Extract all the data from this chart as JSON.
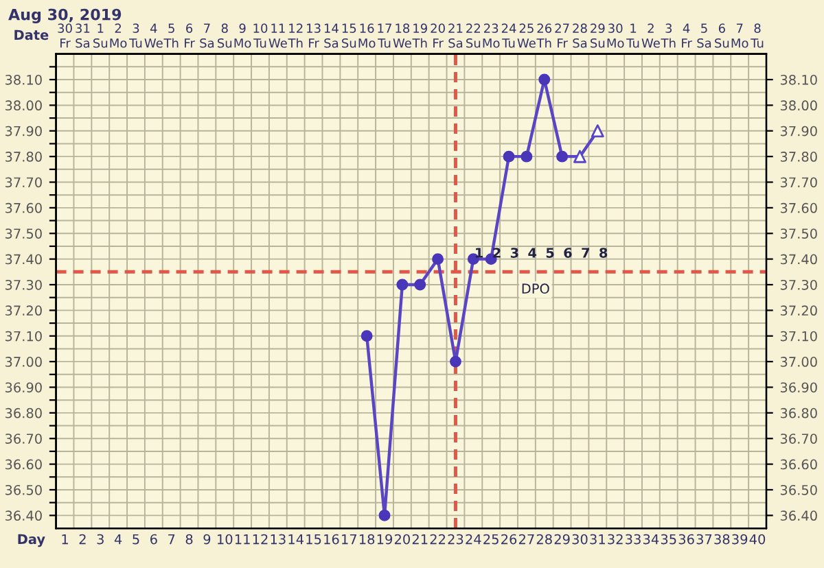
{
  "chart_data": {
    "type": "line",
    "title": "Aug 30, 2019",
    "xlabel": "Day",
    "x2label": "Date",
    "x": [
      18,
      19,
      20,
      21,
      22,
      23,
      24,
      25,
      26,
      27,
      28,
      29,
      30,
      31
    ],
    "series": [
      {
        "color": "#5a46c2",
        "marker": "none",
        "values": [
          37.1,
          36.4,
          37.3,
          37.3,
          37.4,
          37.0,
          37.4,
          37.4,
          37.8,
          37.8,
          38.1,
          37.8,
          37.8,
          37.9
        ]
      },
      {
        "type": "scatter",
        "color": "#4a36b8",
        "marker": "circle",
        "x": [
          18,
          19,
          20,
          21,
          22,
          23,
          24,
          25,
          26,
          27,
          28,
          29
        ],
        "values": [
          37.1,
          36.4,
          37.3,
          37.3,
          37.4,
          37.0,
          37.4,
          37.4,
          37.8,
          37.8,
          38.1,
          37.8
        ]
      },
      {
        "type": "scatter",
        "color": "#5a46c2",
        "marker": "triangle",
        "x": [
          30,
          31
        ],
        "values": [
          37.8,
          37.9
        ]
      }
    ],
    "xlim": [
      0.5,
      40.5
    ],
    "xticks": [
      1,
      2,
      3,
      4,
      5,
      6,
      7,
      8,
      9,
      10,
      11,
      12,
      13,
      14,
      15,
      16,
      17,
      18,
      19,
      20,
      21,
      22,
      23,
      24,
      25,
      26,
      27,
      28,
      29,
      30,
      31,
      32,
      33,
      34,
      35,
      36,
      37,
      38,
      39,
      40
    ],
    "x2lim": [
      "2019-08-29T12:00",
      "2019-10-08T12:00"
    ],
    "x2ticks": [
      {
        "value": "2019-08-30",
        "label": "30\nFr"
      },
      {
        "value": "2019-08-31",
        "label": "31\nSa"
      },
      {
        "value": "2019-09-01",
        "label": "1\nSu"
      },
      {
        "value": "2019-09-02",
        "label": "2\nMo"
      },
      {
        "value": "2019-09-03",
        "label": "3\nTu"
      },
      {
        "value": "2019-09-04",
        "label": "4\nWe"
      },
      {
        "value": "2019-09-05",
        "label": "5\nTh"
      },
      {
        "value": "2019-09-06",
        "label": "6\nFr"
      },
      {
        "value": "2019-09-07",
        "label": "7\nSa"
      },
      {
        "value": "2019-09-08",
        "label": "8\nSu"
      },
      {
        "value": "2019-09-09",
        "label": "9\nMo"
      },
      {
        "value": "2019-09-10",
        "label": "10\nTu"
      },
      {
        "value": "2019-09-11",
        "label": "11\nWe"
      },
      {
        "value": "2019-09-12",
        "label": "12\nTh"
      },
      {
        "value": "2019-09-13",
        "label": "13\nFr"
      },
      {
        "value": "2019-09-14",
        "label": "14\nSa"
      },
      {
        "value": "2019-09-15",
        "label": "15\nSu"
      },
      {
        "value": "2019-09-16",
        "label": "16\nMo"
      },
      {
        "value": "2019-09-17",
        "label": "17\nTu"
      },
      {
        "value": "2019-09-18",
        "label": "18\nWe"
      },
      {
        "value": "2019-09-19",
        "label": "19\nTh"
      },
      {
        "value": "2019-09-20",
        "label": "20\nFr"
      },
      {
        "value": "2019-09-21",
        "label": "21\nSa"
      },
      {
        "value": "2019-09-22",
        "label": "22\nSu"
      },
      {
        "value": "2019-09-23",
        "label": "23\nMo"
      },
      {
        "value": "2019-09-24",
        "label": "24\nTu"
      },
      {
        "value": "2019-09-25",
        "label": "25\nWe"
      },
      {
        "value": "2019-09-26",
        "label": "26\nTh"
      },
      {
        "value": "2019-09-27",
        "label": "27\nFr"
      },
      {
        "value": "2019-09-28",
        "label": "28\nSa"
      },
      {
        "value": "2019-09-29",
        "label": "29\nSu"
      },
      {
        "value": "2019-09-30",
        "label": "30\nMo"
      },
      {
        "value": "2019-10-01",
        "label": "1\nTu"
      },
      {
        "value": "2019-10-02",
        "label": "2\nWe"
      },
      {
        "value": "2019-10-03",
        "label": "3\nTh"
      },
      {
        "value": "2019-10-04",
        "label": "4\nFr"
      },
      {
        "value": "2019-10-05",
        "label": "5\nSa"
      },
      {
        "value": "2019-10-06",
        "label": "6\nSu"
      },
      {
        "value": "2019-10-07",
        "label": "7\nMo"
      },
      {
        "value": "2019-10-08",
        "label": "8\nTu"
      }
    ],
    "ylim": [
      36.35,
      38.2
    ],
    "yticks": [
      {
        "value": 36.4,
        "label": "36.40"
      },
      {
        "value": 36.45,
        "label": null
      },
      {
        "value": 36.5,
        "label": "36.50"
      },
      {
        "value": 36.55,
        "label": null
      },
      {
        "value": 36.6,
        "label": "36.60"
      },
      {
        "value": 36.65,
        "label": null
      },
      {
        "value": 36.7,
        "label": "36.70"
      },
      {
        "value": 36.75,
        "label": null
      },
      {
        "value": 36.8,
        "label": "36.80"
      },
      {
        "value": 36.85,
        "label": null
      },
      {
        "value": 36.9,
        "label": "36.90"
      },
      {
        "value": 36.95,
        "label": null
      },
      {
        "value": 37.0,
        "label": "37.00"
      },
      {
        "value": 37.05,
        "label": null
      },
      {
        "value": 37.1,
        "label": "37.10"
      },
      {
        "value": 37.15,
        "label": null
      },
      {
        "value": 37.2,
        "label": "37.20"
      },
      {
        "value": 37.25,
        "label": null
      },
      {
        "value": 37.3,
        "label": "37.30"
      },
      {
        "value": 37.4,
        "label": "37.40"
      },
      {
        "value": 37.45,
        "label": null
      },
      {
        "value": 37.5,
        "label": "37.50"
      },
      {
        "value": 37.55,
        "label": null
      },
      {
        "value": 37.6,
        "label": "37.60"
      },
      {
        "value": 37.65,
        "label": null
      },
      {
        "value": 37.7,
        "label": "37.70"
      },
      {
        "value": 37.75,
        "label": null
      },
      {
        "value": 37.8,
        "label": "37.80"
      },
      {
        "value": 37.85,
        "label": null
      },
      {
        "value": 37.9,
        "label": "37.90"
      },
      {
        "value": 37.95,
        "label": null
      },
      {
        "value": 38.0,
        "label": "38.00"
      },
      {
        "value": 38.05,
        "label": null
      },
      {
        "value": 38.1,
        "label": "38.10"
      },
      {
        "value": 38.15,
        "label": null
      }
    ],
    "y2lim": [
      36.35,
      38.2
    ],
    "y2ticks": [
      {
        "value": 36.4,
        "label": "36.40"
      },
      {
        "value": 36.5,
        "label": "36.50"
      },
      {
        "value": 36.6,
        "label": "36.60"
      },
      {
        "value": 36.7,
        "label": "36.70"
      },
      {
        "value": 36.8,
        "label": "36.80"
      },
      {
        "value": 36.9,
        "label": "36.90"
      },
      {
        "value": 37.0,
        "label": "37.00"
      },
      {
        "value": 37.1,
        "label": "37.10"
      },
      {
        "value": 37.2,
        "label": "37.20"
      },
      {
        "value": 37.3,
        "label": "37.30"
      },
      {
        "value": 37.4,
        "label": "37.40"
      },
      {
        "value": 37.5,
        "label": "37.50"
      },
      {
        "value": 37.6,
        "label": "37.60"
      },
      {
        "value": 37.7,
        "label": "37.70"
      },
      {
        "value": 37.8,
        "label": "37.80"
      },
      {
        "value": 37.9,
        "label": "37.90"
      },
      {
        "value": 38.0,
        "label": "38.00"
      },
      {
        "value": 38.1,
        "label": "38.10"
      }
    ],
    "ref_lines": [
      {
        "axis": "y",
        "value": 37.35,
        "color": "#e0584a",
        "line_style": "dashed"
      },
      {
        "axis": "x",
        "value": 23,
        "color": "#e0584a",
        "line_style": "dashed"
      }
    ],
    "annotations": [
      "1",
      "2",
      "3",
      "4",
      "5",
      "6",
      "7",
      "8",
      "DPO"
    ],
    "grid": true
  }
}
